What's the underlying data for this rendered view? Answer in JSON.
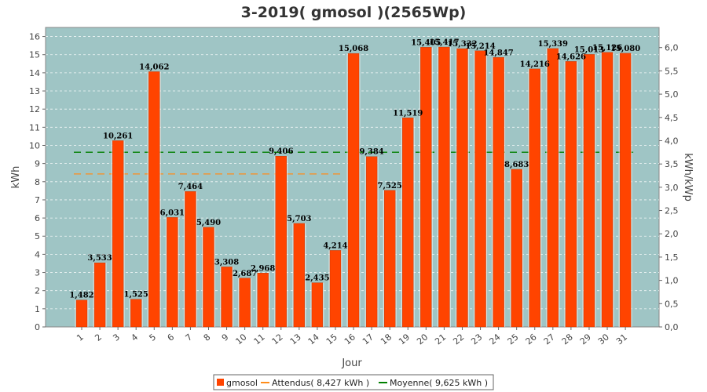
{
  "chart_data": {
    "type": "bar",
    "title": "3-2019( gmosol )(2565Wp)",
    "xlabel": "Jour",
    "ylabel": "kWh",
    "y2label": "kWh/kWp",
    "ylim": [
      0,
      16.5
    ],
    "y2lim": [
      0,
      6.433
    ],
    "y_ticks": [
      "0",
      "1",
      "2",
      "3",
      "4",
      "5",
      "6",
      "7",
      "8",
      "9",
      "10",
      "11",
      "12",
      "13",
      "14",
      "15",
      "16"
    ],
    "y2_ticks": [
      "0,0",
      "0,5",
      "1,0",
      "1,5",
      "2,0",
      "2,5",
      "3,0",
      "3,5",
      "4,0",
      "4,5",
      "5,0",
      "5,5",
      "6,0"
    ],
    "categories": [
      "1",
      "2",
      "3",
      "4",
      "5",
      "6",
      "7",
      "8",
      "9",
      "10",
      "11",
      "12",
      "13",
      "14",
      "15",
      "16",
      "17",
      "18",
      "19",
      "20",
      "21",
      "22",
      "23",
      "24",
      "25",
      "26",
      "27",
      "28",
      "29",
      "30",
      "31"
    ],
    "series": [
      {
        "name": "gmosol",
        "color": "#ff4400",
        "values": [
          1.482,
          3.533,
          10.261,
          1.525,
          14.062,
          6.031,
          7.464,
          5.49,
          3.308,
          2.687,
          2.968,
          9.406,
          5.703,
          2.435,
          4.214,
          15.068,
          9.384,
          7.525,
          11.519,
          15.405,
          15.417,
          15.332,
          15.214,
          14.847,
          8.683,
          14.216,
          15.339,
          14.626,
          15.013,
          15.126,
          15.08
        ],
        "labels": [
          "1,482",
          "3,533",
          "10,261",
          "1,525",
          "14,062",
          "6,031",
          "7,464",
          "5,490",
          "3,308",
          "2,687",
          "2,968",
          "9,406",
          "5,703",
          "2,435",
          "4,214",
          "15,068",
          "9,384",
          "7,525",
          "11,519",
          "15,405",
          "15,417",
          "15,332",
          "15,214",
          "14,847",
          "8,683",
          "14,216",
          "15,339",
          "14,626",
          "15,013",
          "15,126",
          "15,080"
        ]
      }
    ],
    "reference_lines": [
      {
        "name": "Attendus",
        "value": 8.427,
        "color": "#ff8c1a",
        "x_from": "1",
        "x_to": "15",
        "legend": "Attendus( 8,427 kWh )"
      },
      {
        "name": "Moyenne",
        "value": 9.625,
        "color": "#008000",
        "x_from": "1",
        "x_to": "31",
        "legend": "Moyenne( 9,625 kWh )"
      }
    ],
    "legend_position": "bottom",
    "grid": true,
    "plot_background": "#9fc5c5"
  }
}
